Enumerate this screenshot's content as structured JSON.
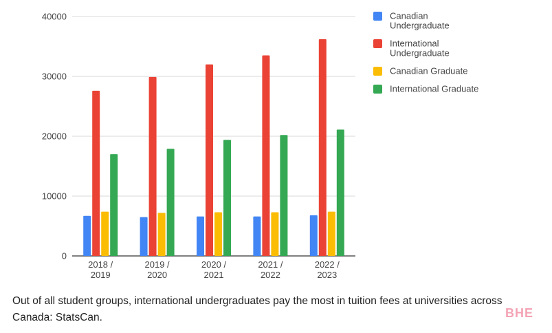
{
  "caption": {
    "text": "Out of all student groups, international undergraduates pay the most in tuition fees at universities across Canada: StatsCan."
  },
  "brand": {
    "text": "BHE",
    "color": "#f4a3b4"
  },
  "chart_data": {
    "type": "bar",
    "title": "",
    "xlabel": "",
    "ylabel": "",
    "ylim": [
      0,
      40000
    ],
    "yticks": [
      0,
      10000,
      20000,
      30000,
      40000
    ],
    "grid": true,
    "legend_position": "right",
    "categories": [
      [
        "2018 /",
        "2019"
      ],
      [
        "2019 /",
        "2020"
      ],
      [
        "2020 /",
        "2021"
      ],
      [
        "2021 /",
        "2022"
      ],
      [
        "2022 /",
        "2023"
      ]
    ],
    "series": [
      {
        "name": "Canadian Undergraduate",
        "legend_lines": [
          "Canadian",
          "Undergraduate"
        ],
        "color": "#4285f4",
        "values": [
          6700,
          6500,
          6600,
          6600,
          6800
        ]
      },
      {
        "name": "International Undergraduate",
        "legend_lines": [
          "International",
          "Undergraduate"
        ],
        "color": "#ea4335",
        "values": [
          27600,
          29900,
          32000,
          33500,
          36200
        ]
      },
      {
        "name": "Canadian Graduate",
        "legend_lines": [
          "Canadian Graduate"
        ],
        "color": "#fbbc04",
        "values": [
          7400,
          7200,
          7300,
          7300,
          7400
        ]
      },
      {
        "name": "International Graduate",
        "legend_lines": [
          "International Graduate"
        ],
        "color": "#34a853",
        "values": [
          17000,
          17900,
          19400,
          20200,
          21100
        ]
      }
    ]
  }
}
